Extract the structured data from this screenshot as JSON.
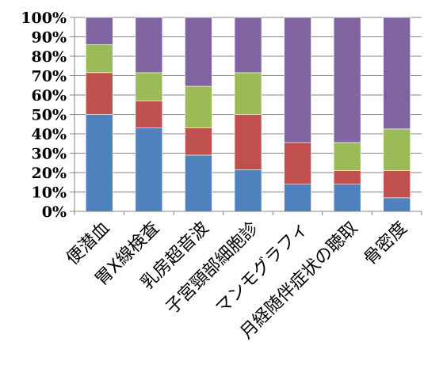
{
  "chart_data": {
    "type": "bar",
    "stacked": true,
    "percent_stacked": true,
    "categories": [
      "便潜血",
      "胃X線検査",
      "乳房超音波",
      "子宮頸部細胞診",
      "マンモグラフィ",
      "月経随伴症状の聴取",
      "骨密度"
    ],
    "series": [
      {
        "color": "#4f81bd",
        "values": [
          50,
          43,
          29,
          21.5,
          14,
          14,
          7
        ]
      },
      {
        "color": "#c0504d",
        "values": [
          21.5,
          14,
          14,
          28.5,
          21.5,
          7,
          14
        ]
      },
      {
        "color": "#9bbb59",
        "values": [
          14.5,
          14.5,
          21.5,
          21.5,
          0,
          14.5,
          21.5
        ]
      },
      {
        "color": "#8064a2",
        "values": [
          14,
          28.5,
          35.5,
          28.5,
          64.5,
          64.5,
          57.5
        ]
      }
    ],
    "yticks": [
      "0%",
      "10%",
      "20%",
      "30%",
      "40%",
      "50%",
      "60%",
      "70%",
      "80%",
      "90%",
      "100%"
    ],
    "ylim": [
      0,
      100
    ],
    "grid": true,
    "legend": "none"
  }
}
